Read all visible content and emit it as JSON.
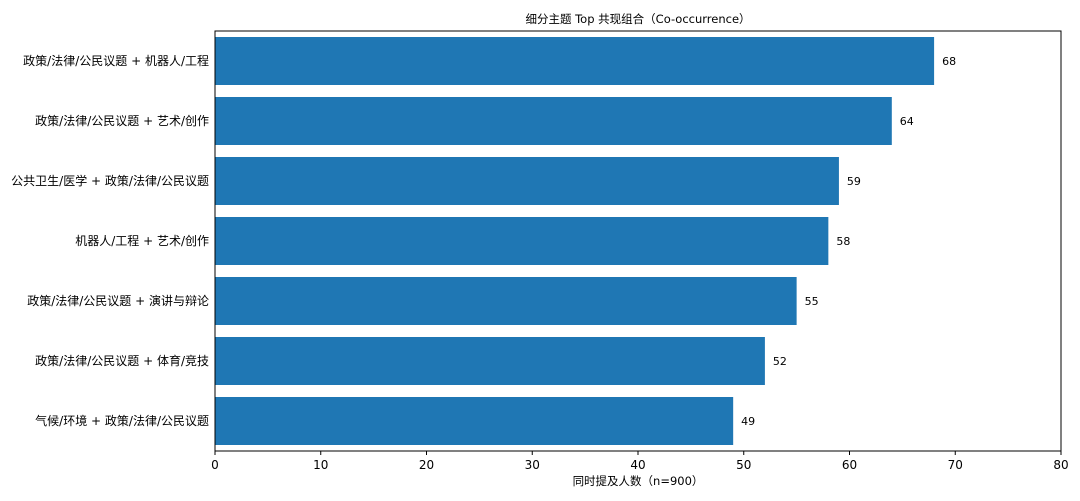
{
  "chart_data": {
    "type": "bar",
    "orientation": "horizontal",
    "title": "细分主题 Top 共现组合（Co-occurrence）",
    "xlabel": "同时提及人数（n=900）",
    "ylabel": "",
    "categories": [
      "政策/法律/公民议题 + 机器人/工程",
      "政策/法律/公民议题 + 艺术/创作",
      "公共卫生/医学 + 政策/法律/公民议题",
      "机器人/工程 + 艺术/创作",
      "政策/法律/公民议题 + 演讲与辩论",
      "政策/法律/公民议题 + 体育/竞技",
      "气候/环境 + 政策/法律/公民议题"
    ],
    "values": [
      68,
      64,
      59,
      58,
      55,
      52,
      49
    ],
    "xlim": [
      0,
      80
    ],
    "xticks": [
      0,
      10,
      20,
      30,
      40,
      50,
      60,
      70,
      80
    ],
    "bar_color": "#1f77b4",
    "grid": false,
    "legend": "none"
  }
}
